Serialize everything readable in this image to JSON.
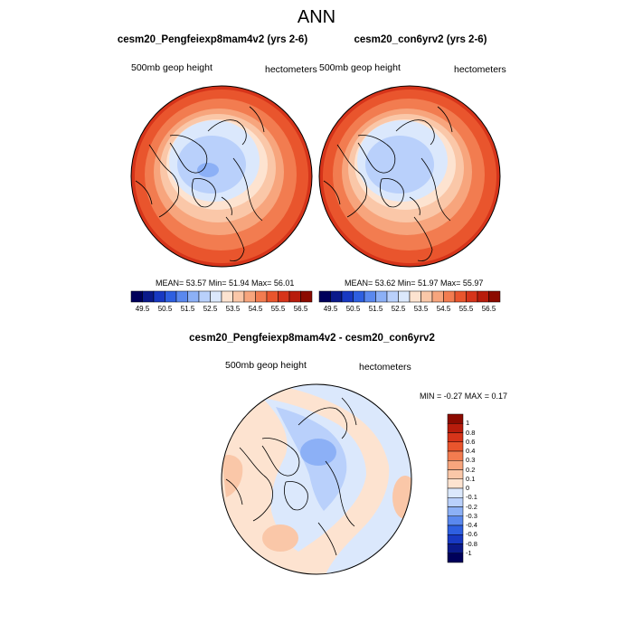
{
  "title": "ANN",
  "panels": [
    {
      "title": "cesm20_Pengfeiexp8mam4v2 (yrs 2-6)",
      "left_label": "500mb geop height",
      "right_label": "hectometers",
      "stats": "MEAN=  53.57  Min=  51.94  Max=  56.01"
    },
    {
      "title": "cesm20_con6yrv2 (yrs 2-6)",
      "left_label": "500mb geop height",
      "right_label": "hectometers",
      "stats": "MEAN=  53.62  Min=  51.97  Max=  55.97"
    }
  ],
  "colorbar": {
    "ticks": [
      "49.5",
      "50.5",
      "51.5",
      "52.5",
      "53.5",
      "54.5",
      "55.5",
      "56.5"
    ],
    "colors": [
      "#00005a",
      "#0b1a8a",
      "#1839c2",
      "#2e5fe0",
      "#5a88ee",
      "#8cb0f6",
      "#b9d0fb",
      "#dbe8fc",
      "#fde3d0",
      "#fac7a8",
      "#f7a57d",
      "#f27c50",
      "#e9552d",
      "#d6341a",
      "#b81c0c",
      "#8c0a00"
    ]
  },
  "diff": {
    "title": "cesm20_Pengfeiexp8mam4v2 - cesm20_con6yrv2",
    "left_label": "500mb geop height",
    "right_label": "hectometers",
    "minmax": "MIN =  -0.27 MAX =   0.17",
    "colorbar": {
      "ticks": [
        "1",
        "0.8",
        "0.6",
        "0.4",
        "0.3",
        "0.2",
        "0.1",
        "0",
        "-0.1",
        "-0.2",
        "-0.3",
        "-0.4",
        "-0.6",
        "-0.8",
        "-1"
      ],
      "colors": [
        "#8c0a00",
        "#b81c0c",
        "#d6341a",
        "#e9552d",
        "#f27c50",
        "#f7a57d",
        "#fac7a8",
        "#fde3d0",
        "#dbe8fc",
        "#b9d0fb",
        "#8cb0f6",
        "#5a88ee",
        "#2e5fe0",
        "#1839c2",
        "#0b1a8a",
        "#00005a"
      ]
    }
  }
}
